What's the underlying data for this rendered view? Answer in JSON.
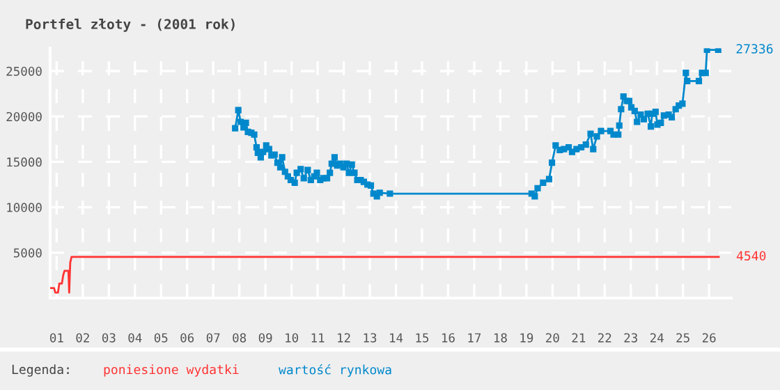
{
  "chart_data": {
    "type": "line",
    "title": "Portfel złoty - (2001 rok)",
    "legend_title": "Legenda:",
    "legend": "bottom left",
    "grid": true,
    "xlim": [
      0.75,
      26.85
    ],
    "ylim": [
      0,
      27500
    ],
    "xticks": [
      {
        "value": 1,
        "label": "01"
      },
      {
        "value": 2,
        "label": "02"
      },
      {
        "value": 3,
        "label": "03"
      },
      {
        "value": 4,
        "label": "04"
      },
      {
        "value": 5,
        "label": "05"
      },
      {
        "value": 6,
        "label": "06"
      },
      {
        "value": 7,
        "label": "07"
      },
      {
        "value": 8,
        "label": "08"
      },
      {
        "value": 9,
        "label": "09"
      },
      {
        "value": 10,
        "label": "10"
      },
      {
        "value": 11,
        "label": "11"
      },
      {
        "value": 12,
        "label": "12"
      },
      {
        "value": 13,
        "label": "13"
      },
      {
        "value": 14,
        "label": "14"
      },
      {
        "value": 15,
        "label": "15"
      },
      {
        "value": 16,
        "label": "16"
      },
      {
        "value": 17,
        "label": "17"
      },
      {
        "value": 18,
        "label": "18"
      },
      {
        "value": 19,
        "label": "19"
      },
      {
        "value": 20,
        "label": "20"
      },
      {
        "value": 21,
        "label": "21"
      },
      {
        "value": 22,
        "label": "22"
      },
      {
        "value": 23,
        "label": "23"
      },
      {
        "value": 24,
        "label": "24"
      },
      {
        "value": 25,
        "label": "25"
      },
      {
        "value": 26,
        "label": "26"
      }
    ],
    "yticks": [
      5000,
      10000,
      15000,
      20000,
      25000
    ],
    "series": [
      {
        "name": "poniesione wydatki",
        "color": "#ff3333",
        "marker": "none",
        "x": [
          0.77,
          0.9,
          0.95,
          1.05,
          1.1,
          1.2,
          1.25,
          1.3,
          1.45,
          1.48,
          1.52,
          1.57,
          26.37
        ],
        "values": [
          1100,
          1100,
          600,
          600,
          1600,
          1600,
          2500,
          3000,
          3000,
          600,
          3900,
          4540,
          4540
        ]
      },
      {
        "name": "wartość rynkowa",
        "color": "#0088cc",
        "marker": "square",
        "x": [
          7.84,
          7.96,
          8.05,
          8.16,
          8.25,
          8.33,
          8.46,
          8.57,
          8.66,
          8.71,
          8.82,
          8.91,
          9.03,
          9.14,
          9.23,
          9.35,
          9.46,
          9.57,
          9.64,
          9.75,
          9.86,
          9.97,
          10.12,
          10.2,
          10.35,
          10.47,
          10.62,
          10.74,
          10.87,
          10.97,
          11.1,
          11.22,
          11.36,
          11.47,
          11.54,
          11.65,
          11.75,
          11.86,
          11.99,
          12.11,
          12.2,
          12.31,
          12.41,
          12.52,
          12.65,
          12.77,
          12.91,
          13.04,
          13.14,
          13.27,
          13.38,
          13.77,
          19.2,
          19.32,
          19.43,
          19.64,
          19.87,
          19.98,
          20.12,
          20.28,
          20.44,
          20.62,
          20.75,
          20.92,
          21.1,
          21.28,
          21.46,
          21.56,
          21.7,
          21.86,
          22.22,
          22.34,
          22.52,
          22.56,
          22.63,
          22.72,
          22.85,
          22.94,
          23.02,
          23.15,
          23.24,
          23.38,
          23.5,
          23.65,
          23.77,
          23.82,
          23.95,
          24.02,
          24.15,
          24.27,
          24.45,
          24.57,
          24.72,
          24.84,
          24.98,
          25.11,
          25.16,
          25.61,
          25.73,
          25.87,
          25.92,
          26.35
        ],
        "values": [
          18700,
          20700,
          19400,
          18800,
          19300,
          18300,
          18200,
          18000,
          16600,
          16000,
          15500,
          16100,
          16800,
          16400,
          15700,
          15800,
          14900,
          14400,
          15500,
          13900,
          13400,
          13000,
          12700,
          13800,
          14200,
          13200,
          14100,
          13000,
          13400,
          13800,
          13000,
          13200,
          13200,
          13800,
          14800,
          15500,
          14600,
          14800,
          14400,
          14800,
          13800,
          14700,
          13800,
          13000,
          13000,
          12800,
          12500,
          12400,
          11500,
          11200,
          11600,
          11500,
          11500,
          11200,
          12100,
          12700,
          13100,
          14900,
          16800,
          16300,
          16400,
          16600,
          16100,
          16400,
          16600,
          16900,
          18100,
          16400,
          17800,
          18400,
          18400,
          18000,
          18000,
          19000,
          20800,
          22200,
          21700,
          21700,
          21000,
          20600,
          19400,
          20200,
          19700,
          20300,
          18900,
          20300,
          20500,
          19100,
          19300,
          20100,
          20200,
          19900,
          20800,
          21200,
          21400,
          24800,
          23900,
          23900,
          24800,
          24800,
          27336,
          27336
        ]
      }
    ],
    "annotations": [
      {
        "text": "27336",
        "x": 26.35,
        "y": 27336
      },
      {
        "text": "4540",
        "x": 26.37,
        "y": 4540
      }
    ]
  }
}
